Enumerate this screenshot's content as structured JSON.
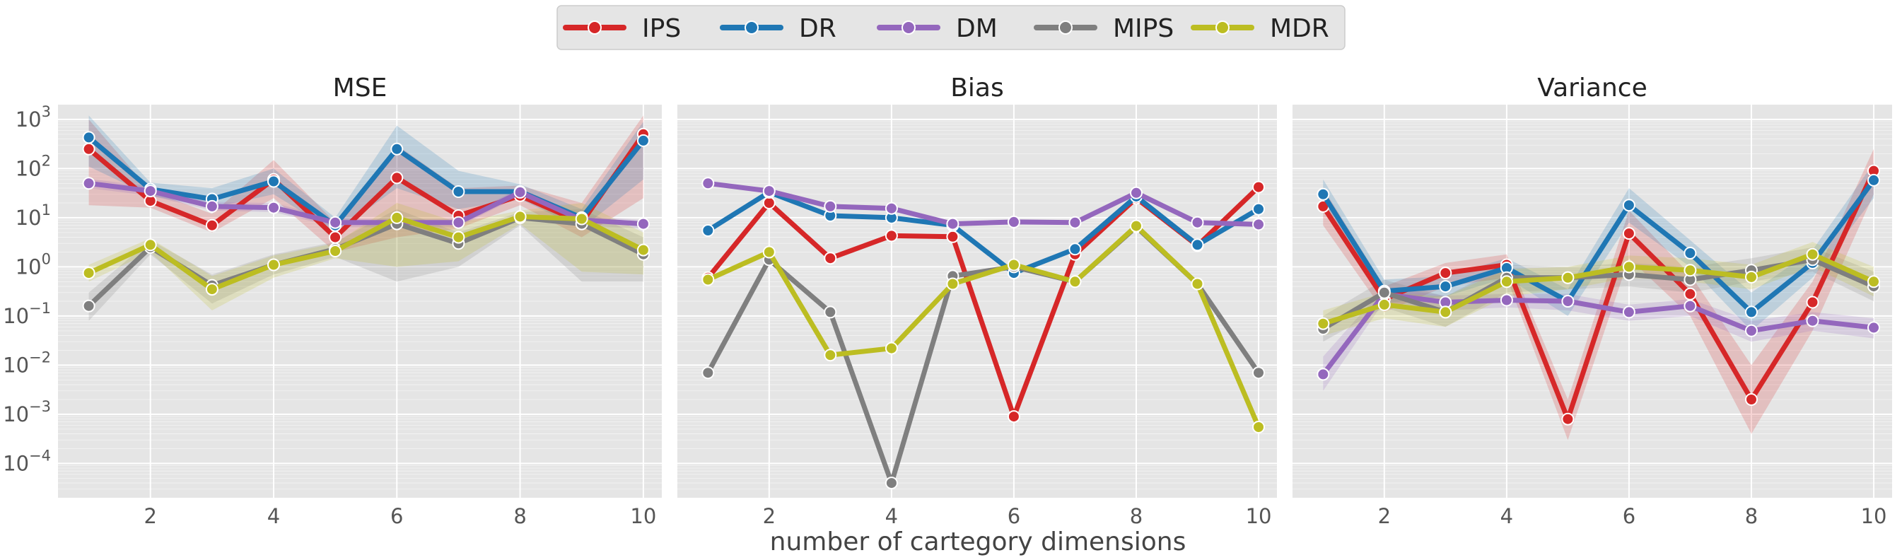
{
  "legend": {
    "placement": "top-center",
    "entries": [
      {
        "name": "IPS",
        "color": "#d62728"
      },
      {
        "name": "DR",
        "color": "#1f77b4"
      },
      {
        "name": "DM",
        "color": "#9467bd"
      },
      {
        "name": "MIPS",
        "color": "#7f7f7f"
      },
      {
        "name": "MDR",
        "color": "#bcbd22"
      }
    ]
  },
  "xlabel": "number of cartegory dimensions",
  "chart_data": [
    {
      "type": "line",
      "title": "MSE",
      "yscale": "log",
      "ylim": [
        2e-05,
        2000
      ],
      "xlim": [
        0.5,
        10.3
      ],
      "xticks": [
        2,
        4,
        6,
        8,
        10
      ],
      "yticks": [
        "10^-4",
        "10^-3",
        "10^-2",
        "10^-1",
        "10^0",
        "10^1",
        "10^2",
        "10^3"
      ],
      "ytick_values": [
        0.0001,
        0.001,
        0.01,
        0.1,
        1,
        10,
        100,
        1000
      ],
      "grid": true,
      "x": [
        1,
        2,
        3,
        4,
        5,
        6,
        7,
        8,
        9,
        10
      ],
      "series": [
        {
          "name": "IPS",
          "values": [
            250,
            22,
            7,
            60,
            4,
            65,
            11,
            28,
            8,
            500
          ],
          "lower": [
            18,
            16,
            5,
            25,
            2,
            4,
            6,
            18,
            4,
            25
          ],
          "upper": [
            1000,
            35,
            12,
            150,
            8,
            300,
            40,
            45,
            20,
            1200
          ]
        },
        {
          "name": "DR",
          "values": [
            430,
            38,
            24,
            55,
            7,
            250,
            34,
            34,
            10,
            370
          ],
          "lower": [
            110,
            28,
            16,
            30,
            5,
            40,
            15,
            24,
            6,
            60
          ],
          "upper": [
            1200,
            52,
            40,
            100,
            10,
            750,
            90,
            48,
            15,
            900
          ]
        },
        {
          "name": "DM",
          "values": [
            50,
            35,
            17,
            16,
            8,
            8,
            8,
            33,
            9,
            7.5
          ],
          "lower": [
            40,
            28,
            14,
            13,
            6.5,
            6.5,
            6.5,
            28,
            7,
            6
          ],
          "upper": [
            62,
            43,
            21,
            20,
            9.5,
            9.5,
            9.5,
            40,
            11,
            9
          ]
        },
        {
          "name": "MIPS",
          "values": [
            0.16,
            2.5,
            0.42,
            1.1,
            2.3,
            7.5,
            3,
            10,
            7.5,
            1.8
          ],
          "lower": [
            0.08,
            1.8,
            0.18,
            0.7,
            1.6,
            0.5,
            1,
            7,
            0.5,
            0.5
          ],
          "upper": [
            0.3,
            3.5,
            0.7,
            1.8,
            3.2,
            15,
            5,
            13,
            15,
            4
          ]
        },
        {
          "name": "MDR",
          "values": [
            0.75,
            2.8,
            0.35,
            1.1,
            2.1,
            10,
            4,
            10.5,
            9.5,
            2.2
          ],
          "lower": [
            0.5,
            2,
            0.13,
            0.6,
            1.5,
            1,
            1.3,
            7.5,
            0.8,
            0.7
          ],
          "upper": [
            1.1,
            3.8,
            0.65,
            1.7,
            3,
            20,
            8,
            14,
            20,
            5
          ]
        }
      ]
    },
    {
      "type": "line",
      "title": "Bias",
      "yscale": "log",
      "ylim": [
        2e-05,
        2000
      ],
      "xlim": [
        0.5,
        10.3
      ],
      "xticks": [
        2,
        4,
        6,
        8,
        10
      ],
      "grid": true,
      "x": [
        1,
        2,
        3,
        4,
        5,
        6,
        7,
        8,
        9,
        10
      ],
      "series": [
        {
          "name": "IPS",
          "values": [
            0.6,
            20,
            1.5,
            4.3,
            4.1,
            0.0009,
            1.8,
            25,
            2.7,
            42
          ]
        },
        {
          "name": "DR",
          "values": [
            5.5,
            33,
            11,
            10,
            7,
            0.75,
            2.3,
            27,
            2.8,
            15
          ]
        },
        {
          "name": "DM",
          "values": [
            50,
            35,
            17,
            15.5,
            7.5,
            8.2,
            8,
            32,
            8,
            7.3
          ]
        },
        {
          "name": "MIPS",
          "values": [
            0.007,
            1.4,
            0.12,
            4e-05,
            0.65,
            1,
            0.5,
            6.5,
            0.45,
            0.007
          ]
        },
        {
          "name": "MDR",
          "values": [
            0.55,
            2,
            0.016,
            0.022,
            0.45,
            1.1,
            0.5,
            6.8,
            0.45,
            0.00055
          ]
        }
      ]
    },
    {
      "type": "line",
      "title": "Variance",
      "yscale": "log",
      "ylim": [
        2e-05,
        2000
      ],
      "xlim": [
        0.5,
        10.3
      ],
      "xticks": [
        2,
        4,
        6,
        8,
        10
      ],
      "grid": true,
      "x": [
        1,
        2,
        3,
        4,
        5,
        6,
        7,
        8,
        9,
        10
      ],
      "series": [
        {
          "name": "IPS",
          "values": [
            17,
            0.22,
            0.75,
            1.1,
            0.0008,
            4.8,
            0.28,
            0.002,
            0.19,
            90
          ],
          "lower": [
            7,
            0.12,
            0.4,
            0.6,
            0.0003,
            1.5,
            0.1,
            0.0004,
            0.05,
            30
          ],
          "upper": [
            40,
            0.4,
            1.2,
            1.8,
            0.002,
            14,
            0.7,
            0.01,
            0.5,
            250
          ]
        },
        {
          "name": "DR",
          "values": [
            30,
            0.32,
            0.4,
            0.95,
            0.2,
            18,
            1.9,
            0.12,
            1.2,
            58
          ],
          "lower": [
            14,
            0.18,
            0.25,
            0.6,
            0.1,
            8,
            1,
            0.05,
            0.6,
            25
          ],
          "upper": [
            60,
            0.55,
            0.65,
            1.5,
            0.35,
            40,
            3.5,
            0.3,
            2.2,
            130
          ]
        },
        {
          "name": "DM",
          "values": [
            0.0065,
            0.28,
            0.19,
            0.21,
            0.2,
            0.12,
            0.16,
            0.05,
            0.08,
            0.058
          ],
          "lower": [
            0.003,
            0.2,
            0.13,
            0.15,
            0.13,
            0.08,
            0.1,
            0.03,
            0.05,
            0.035
          ],
          "upper": [
            0.015,
            0.38,
            0.26,
            0.28,
            0.28,
            0.17,
            0.22,
            0.08,
            0.12,
            0.09
          ]
        },
        {
          "name": "MIPS",
          "values": [
            0.055,
            0.3,
            0.12,
            0.6,
            0.6,
            0.7,
            0.55,
            0.85,
            1.4,
            0.4
          ],
          "lower": [
            0.03,
            0.15,
            0.06,
            0.3,
            0.35,
            0.4,
            0.3,
            0.5,
            0.8,
            0.2
          ],
          "upper": [
            0.1,
            0.55,
            0.25,
            1.1,
            1,
            1.2,
            1,
            1.5,
            2.5,
            0.8
          ]
        },
        {
          "name": "MDR",
          "values": [
            0.07,
            0.17,
            0.12,
            0.5,
            0.6,
            1,
            0.85,
            0.62,
            1.8,
            0.5
          ],
          "lower": [
            0.04,
            0.09,
            0.06,
            0.25,
            0.35,
            0.6,
            0.5,
            0.35,
            1,
            0.25
          ],
          "upper": [
            0.13,
            0.3,
            0.25,
            0.9,
            1,
            1.7,
            1.5,
            1.1,
            3.2,
            1
          ]
        }
      ]
    }
  ]
}
